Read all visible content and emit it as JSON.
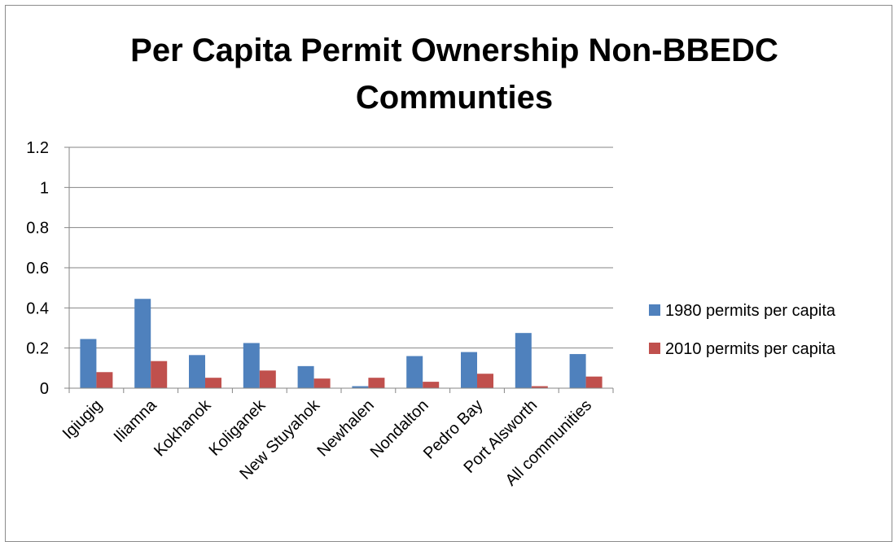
{
  "chart_data": {
    "type": "bar",
    "title_lines": [
      "Per Capita Permit Ownership Non-BBEDC",
      "Communties"
    ],
    "categories": [
      "Igiugig",
      "Iliamna",
      "Kokhanok",
      "Koliganek",
      "New Stuyahok",
      "Newhalen",
      "Nondalton",
      "Pedro Bay",
      "Port Alsworth",
      "All communities"
    ],
    "series": [
      {
        "name": "1980 permits per capita",
        "color": "#4F81BD",
        "values": [
          0.245,
          0.445,
          0.165,
          0.225,
          0.11,
          0.01,
          0.16,
          0.18,
          0.275,
          0.17
        ]
      },
      {
        "name": "2010 permits per capita",
        "color": "#C0504D",
        "values": [
          0.08,
          0.135,
          0.052,
          0.088,
          0.048,
          0.052,
          0.032,
          0.072,
          0.01,
          0.058
        ]
      }
    ],
    "ylim": [
      0,
      1.2
    ],
    "yticks": [
      "0",
      "0.2",
      "0.4",
      "0.6",
      "0.8",
      "1",
      "1.2"
    ],
    "grid": true,
    "legend": "right"
  }
}
